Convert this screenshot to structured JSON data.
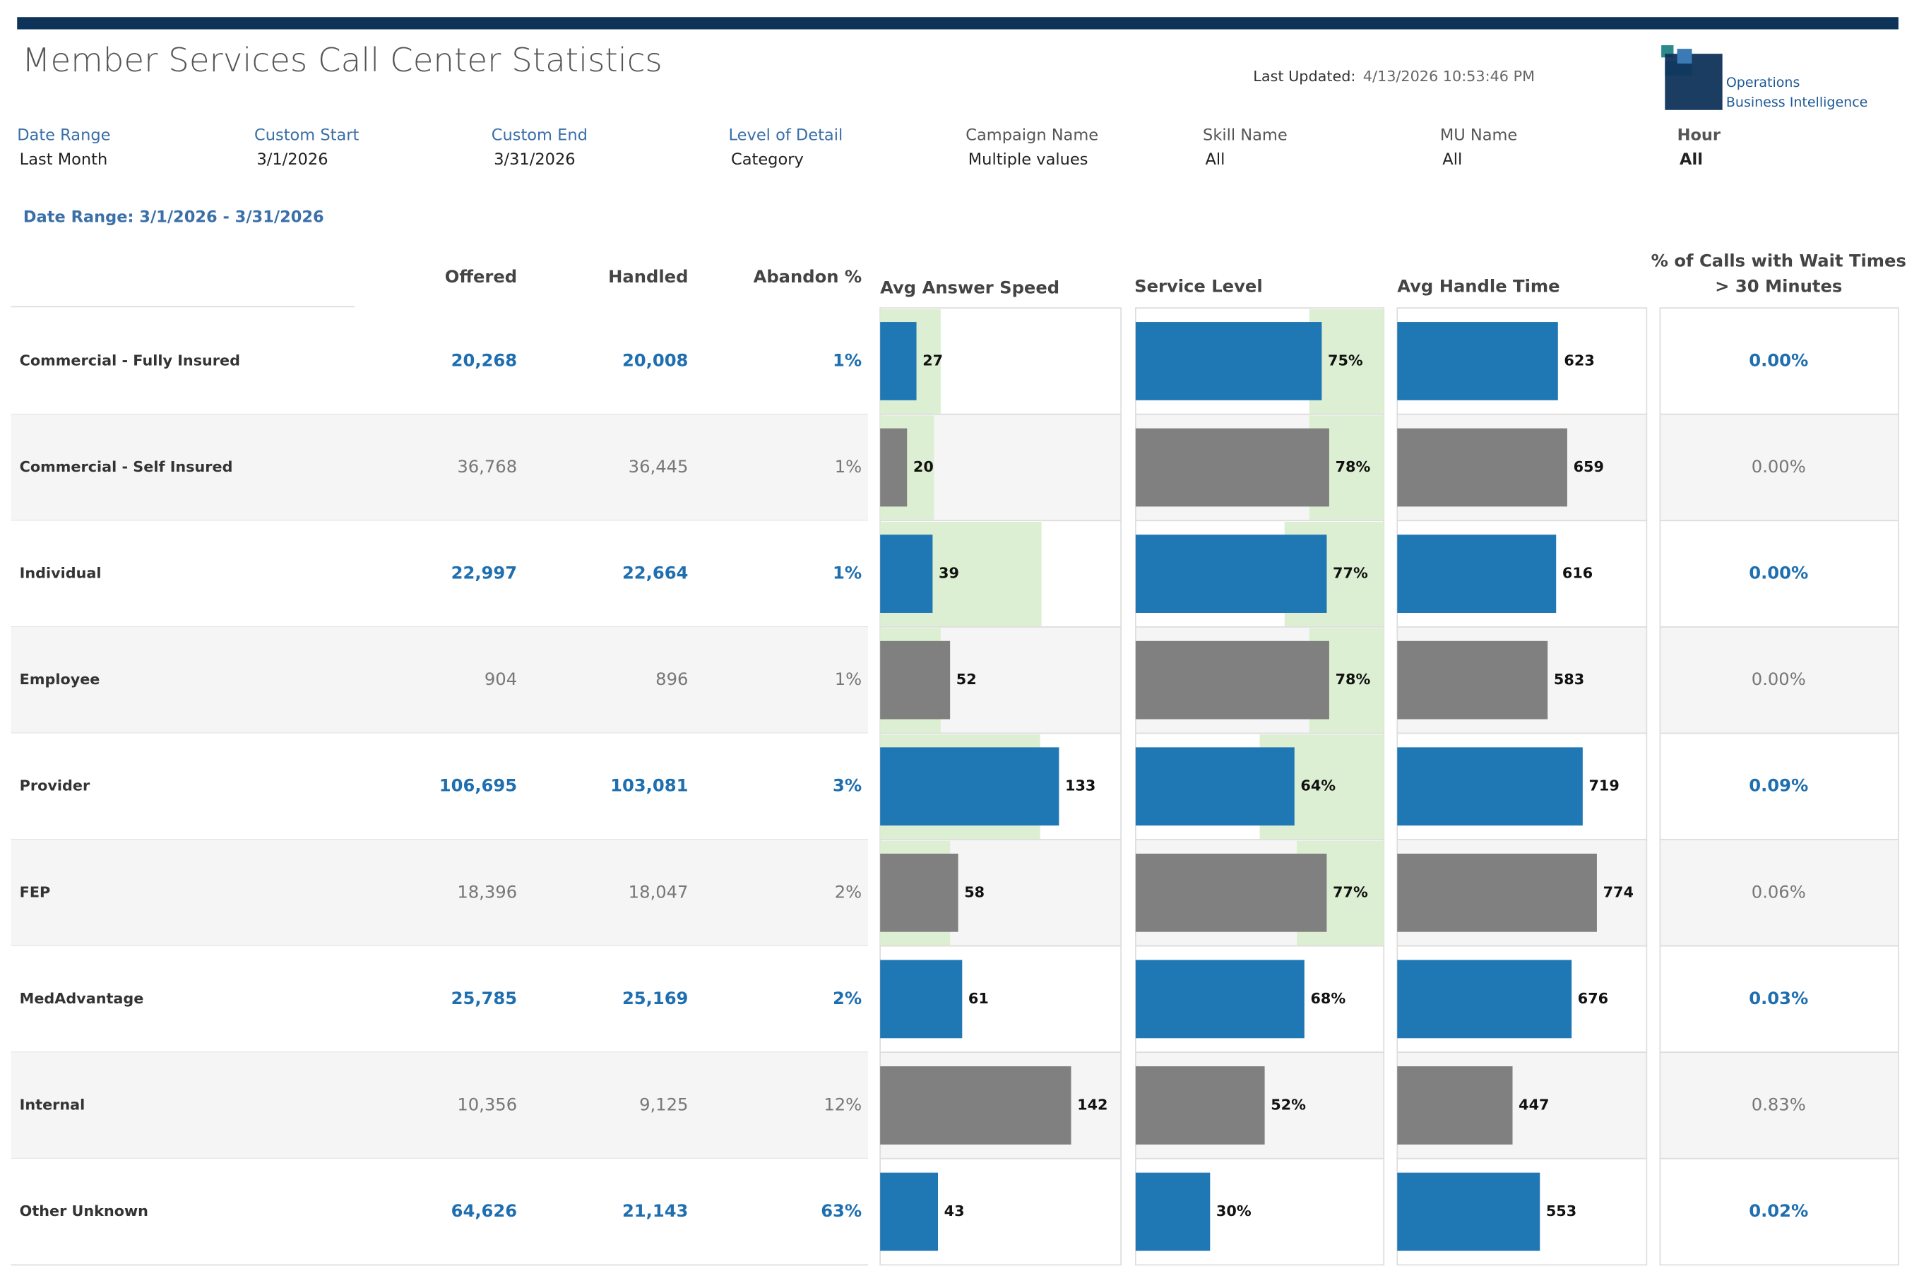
{
  "header": {
    "title": "Member Services Call Center Statistics",
    "last_updated_label": "Last Updated:",
    "last_updated": "4/13/2026 10:53:46 PM",
    "logo_line1": "Operations",
    "logo_line2": "Business Intelligence"
  },
  "filters": [
    {
      "label": "Date Range",
      "value": "Last Month"
    },
    {
      "label": "Custom Start",
      "value": "3/1/2026"
    },
    {
      "label": "Custom End",
      "value": "3/31/2026"
    },
    {
      "label": "Level of Detail",
      "value": "Category"
    },
    {
      "label": "Campaign Name",
      "value": "Multiple values"
    },
    {
      "label": "Skill Name",
      "value": "All"
    },
    {
      "label": "MU Name",
      "value": "All"
    },
    {
      "label": "Hour",
      "value": "All"
    }
  ],
  "date_range_text": "Date Range: 3/1/2026 - 3/31/2026",
  "columns": {
    "offered": "Offered",
    "handled": "Handled",
    "abandon": "Abandon %",
    "answer_speed": "Avg Answer Speed",
    "service_level": "Service Level",
    "handle_time": "Avg Handle Time",
    "wait_line1": "% of Calls with Wait Times",
    "wait_line2": "> 30 Minutes"
  },
  "rows": [
    {
      "name": "Commercial - Fully Insured",
      "offered": "20,268",
      "handled": "20,008",
      "abandon": "1%",
      "answer_speed": 27,
      "answer_speed_goal": 45,
      "service_level": 75,
      "service_level_label": "75%",
      "service_level_goal": 70,
      "handle_time": 623,
      "wait_pct": "0.00%"
    },
    {
      "name": "Commercial - Self Insured",
      "offered": "36,768",
      "handled": "36,445",
      "abandon": "1%",
      "answer_speed": 20,
      "answer_speed_goal": 40,
      "service_level": 78,
      "service_level_label": "78%",
      "service_level_goal": 70,
      "handle_time": 659,
      "wait_pct": "0.00%"
    },
    {
      "name": "Individual",
      "offered": "22,997",
      "handled": "22,664",
      "abandon": "1%",
      "answer_speed": 39,
      "answer_speed_goal": 120,
      "service_level": 77,
      "service_level_label": "77%",
      "service_level_goal": 60,
      "handle_time": 616,
      "wait_pct": "0.00%"
    },
    {
      "name": "Employee",
      "offered": "904",
      "handled": "896",
      "abandon": "1%",
      "answer_speed": 52,
      "answer_speed_goal": 45,
      "service_level": 78,
      "service_level_label": "78%",
      "service_level_goal": 70,
      "handle_time": 583,
      "wait_pct": "0.00%"
    },
    {
      "name": "Provider",
      "offered": "106,695",
      "handled": "103,081",
      "abandon": "3%",
      "answer_speed": 133,
      "answer_speed_goal": 119,
      "service_level": 64,
      "service_level_label": "64%",
      "service_level_goal": 50,
      "handle_time": 719,
      "wait_pct": "0.09%"
    },
    {
      "name": "FEP",
      "offered": "18,396",
      "handled": "18,047",
      "abandon": "2%",
      "answer_speed": 58,
      "answer_speed_goal": 52,
      "service_level": 77,
      "service_level_label": "77%",
      "service_level_goal": 65,
      "handle_time": 774,
      "wait_pct": "0.06%"
    },
    {
      "name": "MedAdvantage",
      "offered": "25,785",
      "handled": "25,169",
      "abandon": "2%",
      "answer_speed": 61,
      "answer_speed_goal": null,
      "service_level": 68,
      "service_level_label": "68%",
      "service_level_goal": null,
      "handle_time": 676,
      "wait_pct": "0.03%"
    },
    {
      "name": "Internal",
      "offered": "10,356",
      "handled": "9,125",
      "abandon": "12%",
      "answer_speed": 142,
      "answer_speed_goal": null,
      "service_level": 52,
      "service_level_label": "52%",
      "service_level_goal": null,
      "handle_time": 447,
      "wait_pct": "0.83%"
    },
    {
      "name": "Other Unknown",
      "offered": "64,626",
      "handled": "21,143",
      "abandon": "63%",
      "answer_speed": 43,
      "answer_speed_goal": null,
      "service_level": 30,
      "service_level_label": "30%",
      "service_level_goal": null,
      "handle_time": 553,
      "wait_pct": "0.02%"
    }
  ]
}
